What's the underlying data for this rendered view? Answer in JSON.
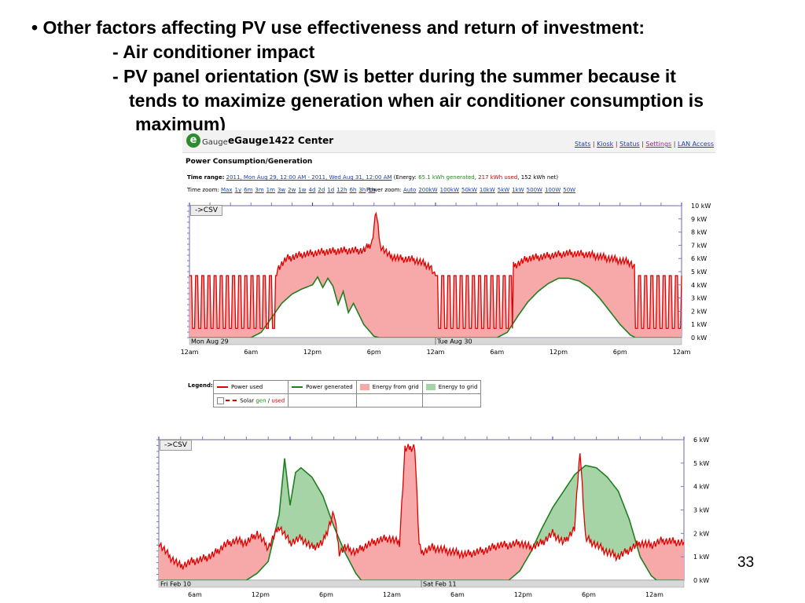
{
  "slide": {
    "bullet": "• Other factors affecting PV use effectiveness and return of investment:",
    "sub1": "- Air conditioner impact",
    "sub2": "- PV panel orientation (SW is better during the summer because it",
    "sub2_cont1": "tends to maximize generation when air conditioner consumption is",
    "sub2_cont2": "maximum)",
    "page_number": "33"
  },
  "egauge": {
    "logo_letter": "e",
    "logo_text": "Gauge",
    "title": "eGauge1422 Center",
    "nav": [
      "Stats",
      "Kiosk",
      "Status",
      "Settings",
      "LAN Access"
    ],
    "nav_sep": " | ",
    "subtitle": "Power Consumption/Generation",
    "time_range_label": "Time range:",
    "time_range_value": "2011, Mon Aug 29, 12:00 AM - 2011, Wed Aug 31, 12:00 AM",
    "energy_open": "(Energy:",
    "energy_generated": "65.1 kWh generated",
    "energy_used": "217 kWh used",
    "energy_net": "152 kWh net)",
    "time_zoom_label": "Time zoom:",
    "time_zoom_options": [
      "Max",
      "1y",
      "6m",
      "3m",
      "1m",
      "3w",
      "2w",
      "1w",
      "4d",
      "2d",
      "1d",
      "12h",
      "6h",
      "3h",
      "1h"
    ],
    "power_zoom_label": "Power zoom:",
    "power_zoom_options": [
      "Auto",
      "200kW",
      "100kW",
      "50kW",
      "10kW",
      "5kW",
      "1kW",
      "500W",
      "100W",
      "50W"
    ],
    "csv_label": "->CSV"
  },
  "legend": {
    "label": "Legend:",
    "power_used": "Power used",
    "power_generated": "Power generated",
    "energy_from_grid": "Energy from grid",
    "energy_to_grid": "Energy to grid",
    "solar_prefix": "Solar",
    "solar_gen": "gen",
    "solar_sep": "/",
    "solar_used": "used"
  },
  "colors": {
    "used": "#e00000",
    "generated": "#1f7f1f",
    "from_grid": "#f7a8a8",
    "to_grid": "#a6d4a6",
    "date_bar": "#d8d8d8",
    "plot_border": "#6a6aa8"
  },
  "chart_data": [
    {
      "type": "area",
      "csv_label": "->CSV",
      "y_ticks": [
        "10 kW",
        "9 kW",
        "8 kW",
        "7 kW",
        "6 kW",
        "5 kW",
        "4 kW",
        "3 kW",
        "2 kW",
        "1 kW",
        "0 kW"
      ],
      "ylim": [
        0,
        10
      ],
      "xlim": [
        0,
        48
      ],
      "x_ticks": [
        "12am",
        "6am",
        "12pm",
        "6pm",
        "12am",
        "6am",
        "12pm",
        "6pm",
        "12am"
      ],
      "date_labels": [
        "Mon Aug 29",
        "Tue Aug 30"
      ],
      "series": [
        {
          "name": "Power used",
          "points": [
            [
              0,
              4.5
            ],
            [
              2,
              4.6
            ],
            [
              4,
              4.5
            ],
            [
              6,
              4.4
            ],
            [
              7.5,
              4.3
            ],
            [
              8.5,
              5.2
            ],
            [
              9.5,
              6.0
            ],
            [
              11,
              6.3
            ],
            [
              13,
              6.5
            ],
            [
              15,
              6.6
            ],
            [
              17,
              6.6
            ],
            [
              17.8,
              7.2
            ],
            [
              18.2,
              9.6
            ],
            [
              18.6,
              7.0
            ],
            [
              19.5,
              6.2
            ],
            [
              20.5,
              6.0
            ],
            [
              22,
              5.9
            ],
            [
              23.5,
              5.4
            ],
            [
              24,
              4.5
            ],
            [
              26,
              4.5
            ],
            [
              28,
              4.6
            ],
            [
              30,
              4.5
            ],
            [
              31,
              5.2
            ],
            [
              33,
              6.0
            ],
            [
              35,
              6.2
            ],
            [
              37,
              6.4
            ],
            [
              39,
              6.3
            ],
            [
              41,
              6.0
            ],
            [
              43,
              5.7
            ],
            [
              44,
              4.8
            ],
            [
              45,
              4.7
            ],
            [
              46,
              4.7
            ],
            [
              48,
              4.6
            ]
          ]
        },
        {
          "name": "Power generated",
          "points": [
            [
              0,
              0
            ],
            [
              6,
              0
            ],
            [
              7,
              0.4
            ],
            [
              8,
              1.5
            ],
            [
              9,
              2.6
            ],
            [
              10,
              3.3
            ],
            [
              11,
              3.7
            ],
            [
              12,
              4.0
            ],
            [
              12.5,
              4.6
            ],
            [
              13,
              3.8
            ],
            [
              13.5,
              4.5
            ],
            [
              14,
              3.9
            ],
            [
              14.5,
              2.5
            ],
            [
              15,
              3.5
            ],
            [
              15.5,
              1.9
            ],
            [
              16,
              2.6
            ],
            [
              17,
              1.0
            ],
            [
              18,
              0.1
            ],
            [
              18.5,
              0
            ],
            [
              30,
              0
            ],
            [
              31,
              0.4
            ],
            [
              32,
              1.6
            ],
            [
              33,
              2.7
            ],
            [
              34,
              3.5
            ],
            [
              35,
              4.1
            ],
            [
              36,
              4.5
            ],
            [
              37,
              4.5
            ],
            [
              38,
              4.3
            ],
            [
              39,
              3.8
            ],
            [
              40,
              3.0
            ],
            [
              41,
              2.0
            ],
            [
              42,
              1.0
            ],
            [
              43,
              0.2
            ],
            [
              43.5,
              0
            ],
            [
              48,
              0
            ]
          ]
        }
      ],
      "oscillation_windows": [
        [
          0,
          8.5
        ],
        [
          24,
          31.5
        ],
        [
          43.5,
          48
        ]
      ],
      "oscillation_range": [
        0.7,
        4.7
      ]
    },
    {
      "type": "area",
      "csv_label": "->CSV",
      "y_ticks": [
        "6 kW",
        "5 kW",
        "4 kW",
        "3 kW",
        "2 kW",
        "1 kW",
        "0 kW"
      ],
      "ylim": [
        0,
        6
      ],
      "xlim": [
        0,
        48
      ],
      "x_ticks": [
        "6am",
        "12pm",
        "6pm",
        "12am",
        "6am",
        "12pm",
        "6pm",
        "12am"
      ],
      "date_labels": [
        "Fri Feb 10",
        "Sat Feb 11"
      ],
      "series": [
        {
          "name": "Power used",
          "points": [
            [
              0,
              1.6
            ],
            [
              1,
              1.0
            ],
            [
              2,
              0.6
            ],
            [
              3,
              0.8
            ],
            [
              4,
              0.9
            ],
            [
              5,
              1.1
            ],
            [
              6,
              1.5
            ],
            [
              7,
              1.7
            ],
            [
              8,
              1.6
            ],
            [
              9,
              2.0
            ],
            [
              10,
              1.4
            ],
            [
              11,
              2.3
            ],
            [
              12,
              1.6
            ],
            [
              13,
              1.8
            ],
            [
              14,
              1.4
            ],
            [
              15,
              1.6
            ],
            [
              16,
              2.9
            ],
            [
              16.5,
              1.2
            ],
            [
              17,
              1.4
            ],
            [
              18,
              1.2
            ],
            [
              19,
              1.5
            ],
            [
              20,
              1.7
            ],
            [
              21,
              1.8
            ],
            [
              22,
              1.6
            ],
            [
              22.5,
              5.6
            ],
            [
              23.4,
              5.7
            ],
            [
              23.8,
              1.5
            ],
            [
              24,
              1.2
            ],
            [
              25,
              1.4
            ],
            [
              26,
              1.3
            ],
            [
              27,
              1.2
            ],
            [
              28,
              1.1
            ],
            [
              29,
              1.2
            ],
            [
              30,
              1.3
            ],
            [
              31,
              1.5
            ],
            [
              32,
              1.5
            ],
            [
              33,
              1.6
            ],
            [
              34,
              1.4
            ],
            [
              35,
              1.6
            ],
            [
              36,
              2.0
            ],
            [
              37,
              1.6
            ],
            [
              38,
              2.2
            ],
            [
              38.5,
              5.6
            ],
            [
              39,
              1.8
            ],
            [
              40,
              1.5
            ],
            [
              41,
              1.2
            ],
            [
              42,
              1.0
            ],
            [
              43,
              1.3
            ],
            [
              44,
              1.6
            ],
            [
              45,
              1.5
            ],
            [
              46,
              1.7
            ],
            [
              48,
              1.6
            ]
          ]
        },
        {
          "name": "Power generated",
          "points": [
            [
              0,
              0
            ],
            [
              8,
              0
            ],
            [
              9,
              0.3
            ],
            [
              10,
              0.8
            ],
            [
              11,
              2.8
            ],
            [
              11.5,
              5.2
            ],
            [
              12,
              3.2
            ],
            [
              12.5,
              4.6
            ],
            [
              13,
              4.8
            ],
            [
              14,
              4.4
            ],
            [
              15,
              3.6
            ],
            [
              16,
              2.3
            ],
            [
              17,
              1.2
            ],
            [
              18,
              0.3
            ],
            [
              18.5,
              0
            ],
            [
              32,
              0
            ],
            [
              33,
              0.4
            ],
            [
              34,
              1.2
            ],
            [
              35,
              2.2
            ],
            [
              36,
              3.1
            ],
            [
              37,
              3.8
            ],
            [
              38,
              4.5
            ],
            [
              39,
              4.9
            ],
            [
              40,
              4.8
            ],
            [
              41,
              4.4
            ],
            [
              42,
              3.8
            ],
            [
              43,
              2.6
            ],
            [
              44,
              1.0
            ],
            [
              45,
              0.2
            ],
            [
              45.5,
              0
            ],
            [
              48,
              0
            ]
          ]
        }
      ]
    }
  ]
}
